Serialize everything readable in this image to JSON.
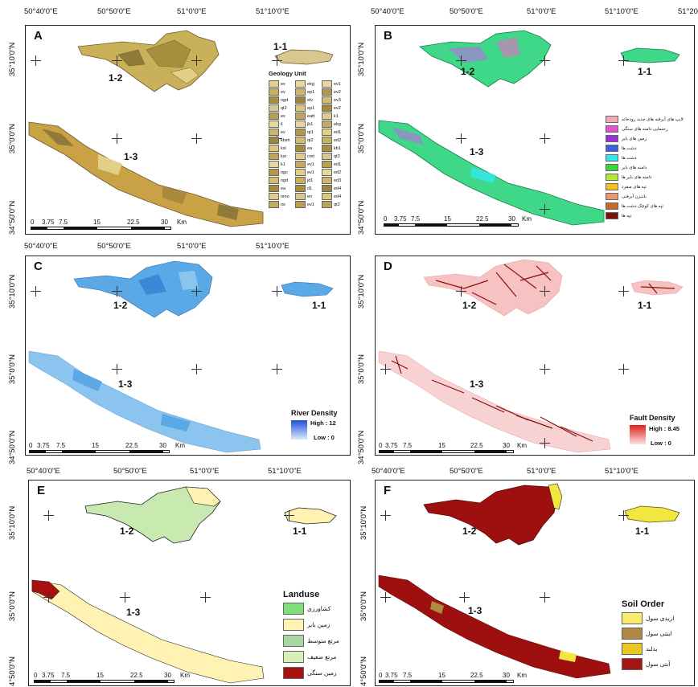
{
  "coords": {
    "x_top": [
      "50°40'0\"E",
      "50°50'0\"E",
      "51°0'0\"E",
      "51°10'0\"E",
      "51°20"
    ],
    "x_mid": [
      "50°40'0\"E",
      "50°50'0\"E",
      "51°0'0\"E",
      "51°10'0\"E"
    ],
    "x_bot": [
      "50°40'0\"E",
      "50°50'0\"E",
      "51°0'0\"E",
      "51°10'0\"E"
    ],
    "x_bot_right": [
      "50°40'0\"E",
      "50°50'0\"E",
      "51°0'0\"E",
      "51°10'0\"E"
    ],
    "y": [
      "35°10'0\"N",
      "35°0'0\"N",
      "34°50'0\"N"
    ],
    "y_bot_last": "4°50'0\"N"
  },
  "zones": {
    "z11": "1-1",
    "z12": "1-2",
    "z13": "1-3"
  },
  "scale": {
    "ticks": [
      "0",
      "3.75",
      "7.5",
      "15",
      "22.5",
      "30"
    ],
    "unit": "Km"
  },
  "panels": {
    "A": {
      "label": "A",
      "legend_title": "Geology Unit",
      "units_col1": [
        "ev",
        "ev",
        "ngd",
        "qt2",
        "ev",
        "il",
        "ev",
        "kbsh",
        "ksl",
        "ksr",
        "k1",
        "ngc",
        "ngd",
        "ea",
        "nmo",
        "ns"
      ],
      "units_col2": [
        "ekg",
        "ep1",
        "elv",
        "ep1",
        "eatt",
        "jb1",
        "qt1",
        "qt2",
        "ea",
        "cmt",
        "ev1",
        "ev1",
        "jd1",
        "d1",
        "en",
        "ev1"
      ],
      "units_col3": [
        "ev1",
        "ev2",
        "ev3",
        "ev2",
        "k1",
        "ekg",
        "ed1",
        "ed2",
        "kb1",
        "qt3",
        "ed1",
        "ed2",
        "ed3",
        "ed4",
        "ed4",
        "qt2"
      ]
    },
    "B": {
      "label": "B",
      "legend": [
        {
          "label": "لایپ های آبرفته های جدید رودخانه",
          "color": "#f4a9b8"
        },
        {
          "label": "رخنمایی دامنه های سنگی",
          "color": "#e94fd0"
        },
        {
          "label": "زمین های بایر",
          "color": "#9a2fd8"
        },
        {
          "label": "دشت ها",
          "color": "#3b5fe0"
        },
        {
          "label": "دشت ها",
          "color": "#35e8ee"
        },
        {
          "label": "دامنه های بایر",
          "color": "#37d837"
        },
        {
          "label": "دامنه های بایر ها",
          "color": "#b5e835"
        },
        {
          "label": "تپه های منفرد",
          "color": "#f2c21a"
        },
        {
          "label": "بادبزن آبرفتی",
          "color": "#e8986a"
        },
        {
          "label": "تپه های کوچک دشت ها",
          "color": "#c66a2a"
        },
        {
          "label": "تپه ها",
          "color": "#7a1010"
        }
      ]
    },
    "C": {
      "label": "C",
      "legend_title": "River Density",
      "high": "High : 12",
      "low": "Low : 0"
    },
    "D": {
      "label": "D",
      "legend_title": "Fault Density",
      "high": "High : 8.45",
      "low": "Low : 0"
    },
    "E": {
      "label": "E",
      "legend_title": "Landuse",
      "legend": [
        {
          "label": "کشاورزی",
          "color": "#7fe07a"
        },
        {
          "label": "زمین بایر",
          "color": "#fff2b2"
        },
        {
          "label": "مرتع متوسط",
          "color": "#a8d8a0"
        },
        {
          "label": "مرتع ضعیف",
          "color": "#d8f0b8"
        },
        {
          "label": "زمین سنگی",
          "color": "#a81010"
        }
      ]
    },
    "F": {
      "label": "F",
      "legend_title": "Soil Order",
      "legend": [
        {
          "label": "اریدی سول",
          "color": "#f6ee6a"
        },
        {
          "label": "اینتی سول",
          "color": "#b08a45"
        },
        {
          "label": "بدلند",
          "color": "#e8c81e"
        },
        {
          "label": "آنتی سول",
          "color": "#a81515"
        }
      ]
    }
  },
  "colors": {
    "geology": "#c9b15a",
    "geomorph": "#3fd888",
    "river": "#5aa8e6",
    "fault_fill": "#f6c2c2",
    "fault_line": "#8a1010",
    "landuse": "#fff2b2",
    "landuse2": "#c8eab0",
    "soil": "#9e1010",
    "soil2": "#f2e640"
  }
}
